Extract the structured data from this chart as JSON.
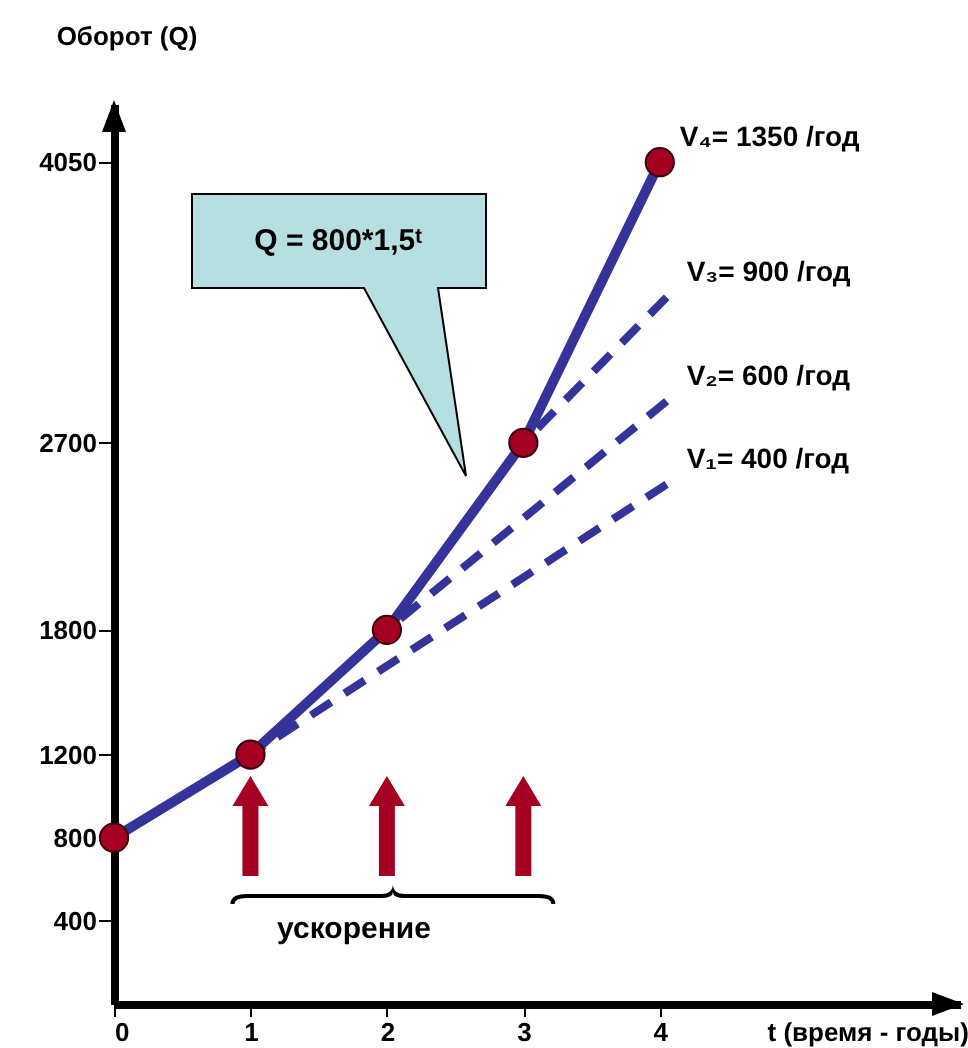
{
  "chart_data": {
    "type": "line",
    "ylabel": "Оборот (Q)",
    "xlabel": "t (время - годы)",
    "xlim": [
      0,
      6.2
    ],
    "xticks": [
      0,
      1,
      2,
      3,
      4
    ],
    "ylim": [
      0,
      4330
    ],
    "yticks": [
      400,
      800,
      1200,
      1800,
      2700,
      4050
    ],
    "grid": false,
    "series": [
      {
        "name": "V₄= 1350 /год",
        "color": "#333399",
        "x": [
          0,
          1,
          2,
          3,
          4
        ],
        "values": [
          800,
          1200,
          1800,
          2700,
          4050
        ],
        "marker": "circle",
        "line_style": "solid"
      },
      {
        "name": "V₃= 900 /год",
        "color": "#333399",
        "x": [
          3,
          4.05
        ],
        "values": [
          2700,
          3400
        ],
        "marker": "none",
        "line_style": "dashed"
      },
      {
        "name": "V₂= 600 /год",
        "color": "#333399",
        "x": [
          2,
          4.05
        ],
        "values": [
          1800,
          2900
        ],
        "marker": "none",
        "line_style": "dashed"
      },
      {
        "name": "V₁= 400 /год",
        "color": "#333399",
        "x": [
          1,
          4.05
        ],
        "values": [
          1200,
          2500
        ],
        "marker": "none",
        "line_style": "dashed"
      }
    ],
    "annotations": [
      "Q = 800*1,5ᵗ",
      "ускорение"
    ]
  }
}
